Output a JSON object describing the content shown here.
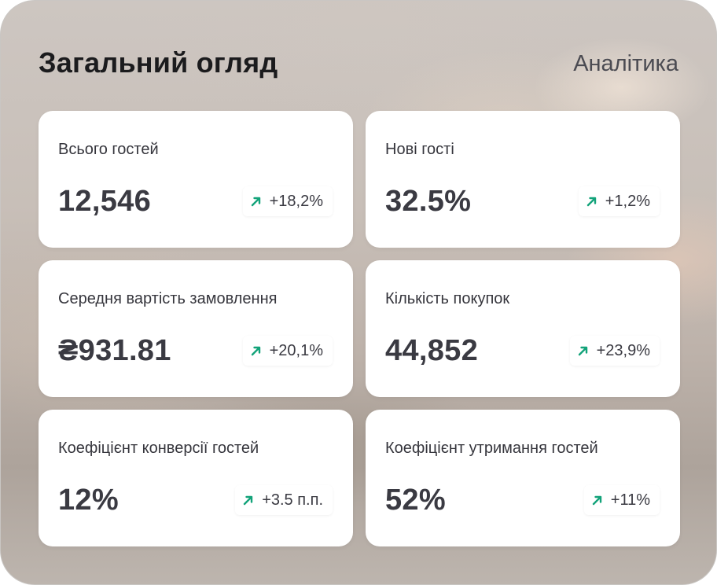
{
  "header": {
    "title": "Загальний огляд",
    "link_label": "Аналітика"
  },
  "colors": {
    "trend_up": "#13a37a",
    "card_bg": "#ffffff",
    "text_dark": "#3a3a42"
  },
  "cards": [
    {
      "label": "Всього гостей",
      "value": "12,546",
      "delta": "+18,2%",
      "trend_icon": "arrow-up-right-icon"
    },
    {
      "label": "Нові гості",
      "value": "32.5%",
      "delta": "+1,2%",
      "trend_icon": "arrow-up-right-icon"
    },
    {
      "label": "Середня вартість замовлення",
      "value": "₴931.81",
      "delta": "+20,1%",
      "trend_icon": "arrow-up-right-icon"
    },
    {
      "label": "Кількість покупок",
      "value": "44,852",
      "delta": "+23,9%",
      "trend_icon": "arrow-up-right-icon"
    },
    {
      "label": "Коефіцієнт конверсії гостей",
      "value": "12%",
      "delta": "+3.5 п.п.",
      "trend_icon": "arrow-up-right-icon"
    },
    {
      "label": "Коефіцієнт утримання гостей",
      "value": "52%",
      "delta": "+11%",
      "trend_icon": "arrow-up-right-icon"
    }
  ]
}
